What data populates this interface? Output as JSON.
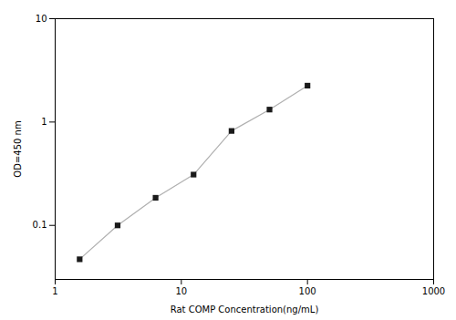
{
  "chart_data": {
    "type": "line",
    "x": [
      1.563,
      3.125,
      6.25,
      12.5,
      25,
      50,
      100
    ],
    "values": [
      0.047,
      0.1,
      0.185,
      0.31,
      0.82,
      1.32,
      2.25
    ],
    "xlabel": "Rat COMP Concentration(ng/mL)",
    "ylabel": "OD=450 nm",
    "xlim": [
      1,
      1000
    ],
    "ylim": [
      0.03,
      10
    ],
    "xticks": [
      1,
      10,
      100,
      1000
    ],
    "yticks": [
      0.1,
      1,
      10
    ],
    "log": true,
    "color": "#1a1a1a",
    "marker": "square"
  }
}
